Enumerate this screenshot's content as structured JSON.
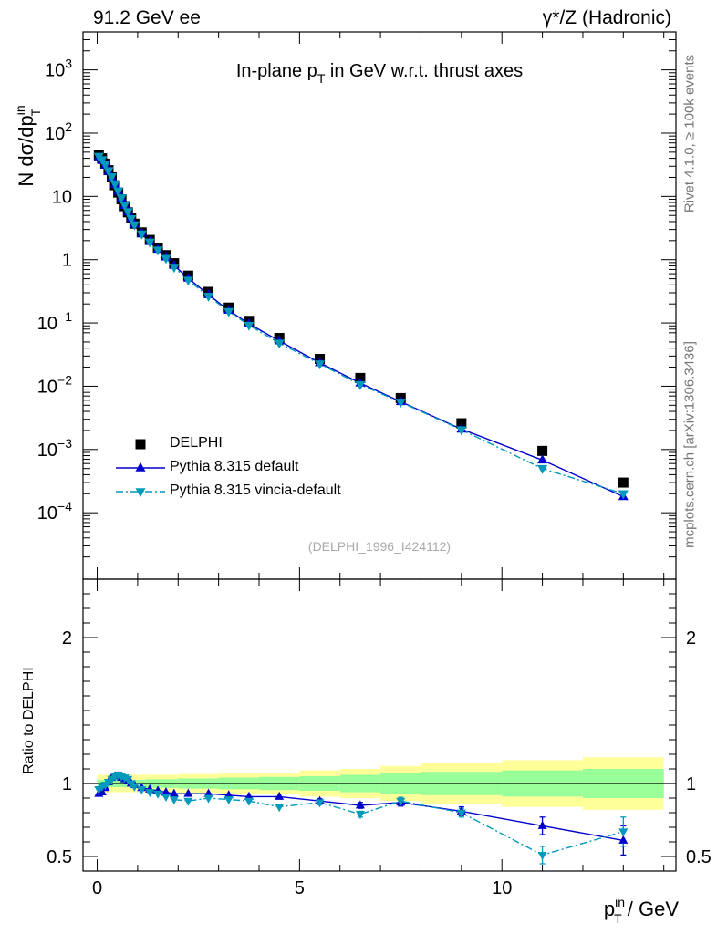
{
  "header": {
    "left": "91.2 GeV ee",
    "right": "γ*/Z (Hadronic)"
  },
  "title": "In-plane p_T in GeV w.r.t. thrust axes",
  "side_labels": {
    "rivet": "Rivet 4.1.0, ≥ 100k events",
    "mcplots": "mcplots.cern.ch [arXiv:1306.3436]"
  },
  "analysis_tag": "(DELPHI_1996_I424112)",
  "axes": {
    "main_ylabel": "N  dσ/dp_T^in",
    "ratio_ylabel": "Ratio to DELPHI",
    "xlabel": "p_T^in / GeV"
  },
  "legend": [
    {
      "label": "DELPHI",
      "color": "#000000",
      "marker": "square"
    },
    {
      "label": "Pythia 8.315 default",
      "color": "#0000cc",
      "marker": "triangle-up"
    },
    {
      "label": "Pythia 8.315 vincia-default",
      "color": "#0099bb",
      "marker": "triangle-down"
    }
  ],
  "chart_data": {
    "type": "scatter",
    "xlim": [
      -0.35,
      14.3
    ],
    "main_ylim_log10": [
      -5.05,
      3.6
    ],
    "ratio_ylim": [
      0.4,
      2.4
    ],
    "x_ticks": [
      0,
      5,
      10
    ],
    "main_y_ticks": [
      "10^-4",
      "10^-3",
      "10^-2",
      "10^-1",
      "1",
      "10",
      "10^2",
      "10^3"
    ],
    "ratio_y_ticks": [
      "0.5",
      "1",
      "2"
    ],
    "x": [
      0.04,
      0.12,
      0.2,
      0.28,
      0.36,
      0.44,
      0.52,
      0.6,
      0.68,
      0.76,
      0.84,
      0.92,
      1.1,
      1.3,
      1.5,
      1.7,
      1.9,
      2.25,
      2.75,
      3.25,
      3.75,
      4.5,
      5.5,
      6.5,
      7.5,
      9.0,
      11.0,
      13.0
    ],
    "series": [
      {
        "name": "DELPHI",
        "values": [
          45,
          40,
          33,
          26,
          20,
          15,
          11.5,
          9.0,
          7.0,
          5.6,
          4.5,
          3.7,
          2.7,
          2.05,
          1.55,
          1.18,
          0.88,
          0.56,
          0.31,
          0.175,
          0.108,
          0.058,
          0.027,
          0.0135,
          0.0065,
          0.0026,
          0.00095,
          0.0003
        ]
      },
      {
        "name": "Pythia 8.315 default",
        "values": [
          42,
          37,
          31,
          25,
          20,
          15.5,
          12,
          9.4,
          7.2,
          5.7,
          4.5,
          3.65,
          2.62,
          1.95,
          1.46,
          1.1,
          0.81,
          0.51,
          0.28,
          0.158,
          0.097,
          0.052,
          0.0235,
          0.0112,
          0.0057,
          0.0021,
          0.00068,
          0.00018
        ]
      },
      {
        "name": "Pythia 8.315 vincia-default",
        "values": [
          43,
          38,
          32,
          25.5,
          20.5,
          15.8,
          12.2,
          9.5,
          7.3,
          5.75,
          4.45,
          3.55,
          2.55,
          1.9,
          1.42,
          1.05,
          0.76,
          0.475,
          0.265,
          0.152,
          0.092,
          0.048,
          0.0225,
          0.0106,
          0.0056,
          0.00205,
          0.0005,
          0.0002
        ]
      }
    ],
    "ratios": [
      {
        "name": "Pythia 8.315 default",
        "values": [
          0.93,
          0.94,
          0.97,
          1.01,
          1.04,
          1.05,
          1.05,
          1.04,
          1.03,
          1.02,
          1.0,
          0.99,
          0.97,
          0.96,
          0.95,
          0.94,
          0.93,
          0.93,
          0.93,
          0.92,
          0.91,
          0.91,
          0.88,
          0.85,
          0.87,
          0.81,
          0.71,
          0.61
        ],
        "errors": [
          0.01,
          0.01,
          0.01,
          0.01,
          0.01,
          0.01,
          0.01,
          0.01,
          0.01,
          0.01,
          0.01,
          0.01,
          0.01,
          0.01,
          0.01,
          0.01,
          0.01,
          0.01,
          0.01,
          0.01,
          0.01,
          0.01,
          0.015,
          0.02,
          0.025,
          0.03,
          0.06,
          0.1
        ]
      },
      {
        "name": "Pythia 8.315 vincia-default",
        "values": [
          0.96,
          0.98,
          0.99,
          1.01,
          1.03,
          1.05,
          1.06,
          1.05,
          1.04,
          1.03,
          1.0,
          0.98,
          0.96,
          0.94,
          0.93,
          0.91,
          0.89,
          0.88,
          0.9,
          0.89,
          0.88,
          0.84,
          0.87,
          0.79,
          0.88,
          0.8,
          0.51,
          0.67
        ],
        "errors": [
          0.01,
          0.01,
          0.01,
          0.01,
          0.01,
          0.01,
          0.01,
          0.01,
          0.01,
          0.01,
          0.01,
          0.01,
          0.01,
          0.01,
          0.01,
          0.01,
          0.01,
          0.01,
          0.01,
          0.01,
          0.01,
          0.01,
          0.015,
          0.02,
          0.025,
          0.03,
          0.06,
          0.1
        ]
      }
    ],
    "uncertainty_bands": {
      "x_edges": [
        0.0,
        0.6,
        1.2,
        2.0,
        3.0,
        4.0,
        5.0,
        6.0,
        7.0,
        8.0,
        10.0,
        12.0,
        14.0
      ],
      "inner": [
        0.025,
        0.025,
        0.03,
        0.035,
        0.04,
        0.045,
        0.05,
        0.06,
        0.07,
        0.08,
        0.09,
        0.1
      ],
      "outer": [
        0.06,
        0.06,
        0.06,
        0.065,
        0.07,
        0.075,
        0.09,
        0.1,
        0.12,
        0.14,
        0.16,
        0.18
      ]
    },
    "colors": {
      "data": "#000000",
      "default": "#0000cc",
      "vincia": "#0099bb",
      "inner_band": "#99ff99",
      "outer_band": "#ffff99"
    }
  }
}
